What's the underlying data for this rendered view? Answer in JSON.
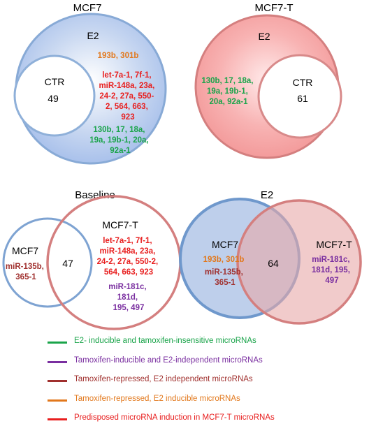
{
  "colors": {
    "green": "#1aa44a",
    "purple": "#7a2fa0",
    "brown": "#a0302e",
    "orange": "#e2781c",
    "red": "#e81e1e",
    "blue_stroke": "#7ea3d2",
    "red_stroke": "#d47f7f"
  },
  "panels": {
    "mcf7": {
      "title": "MCF7",
      "outer_label": "E2",
      "inner_label": "CTR",
      "inner_count": "49",
      "orange_text": "193b, 301b",
      "red_lines": [
        "let-7a-1, 7f-1,",
        "miR-148a, 23a,",
        "24-2, 27a, 550-",
        "2, 564, 663,",
        "923"
      ],
      "green_lines": [
        "130b, 17, 18a,",
        "19a, 19b-1, 20a,",
        "92a-1"
      ]
    },
    "mcf7t": {
      "title": "MCF7-T",
      "outer_label": "E2",
      "inner_label": "CTR",
      "inner_count": "61",
      "green_lines": [
        "130b, 17, 18a,",
        "19a, 19b-1,",
        "20a, 92a-1"
      ]
    },
    "baseline": {
      "title": "Baseline",
      "left_label": "MCF7",
      "right_label": "MCF7-T",
      "overlap_count": "47",
      "left_lines": [
        "miR-135b,",
        "365-1"
      ],
      "red_lines": [
        "let-7a-1, 7f-1,",
        "miR-148a, 23a,",
        "24-2, 27a, 550-2,",
        "564, 663, 923"
      ],
      "purple_lines": [
        "miR-181c,",
        "181d,",
        "195, 497"
      ]
    },
    "e2": {
      "title": "E2",
      "left_label": "MCF7",
      "right_label": "MCF7-T",
      "overlap_count": "64",
      "orange_text": "193b, 301b",
      "brown_lines": [
        "miR-135b,",
        "365-1"
      ],
      "purple_lines": [
        "miR-181c,",
        "181d, 195,",
        "497"
      ]
    }
  },
  "legend": [
    {
      "color": "#1aa44a",
      "label": "E2- inducible and tamoxifen-insensitive microRNAs"
    },
    {
      "color": "#7a2fa0",
      "label": "Tamoxifen-inducible and E2-independent microRNAs"
    },
    {
      "color": "#a0302e",
      "label": "Tamoxifen-repressed, E2 independent microRNAs"
    },
    {
      "color": "#e2781c",
      "label": "Tamoxifen-repressed, E2 inducible microRNAs"
    },
    {
      "color": "#e81e1e",
      "label": "Predisposed microRNA induction in MCF7-T microRNAs"
    }
  ]
}
